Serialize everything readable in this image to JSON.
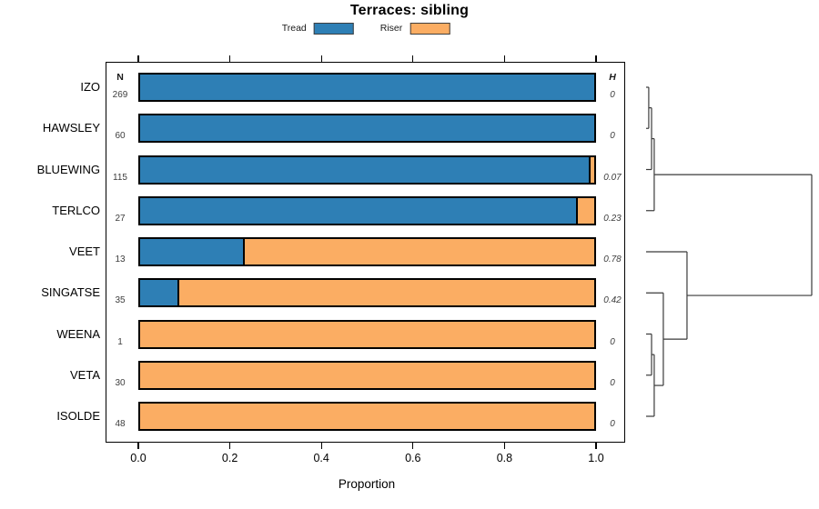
{
  "title": "Terraces: sibling",
  "legend": {
    "items": [
      {
        "label": "Tread",
        "color": "#2E7FB5"
      },
      {
        "label": "Riser",
        "color": "#FBAD63"
      }
    ]
  },
  "columns": {
    "n_header": "N",
    "h_header": "H"
  },
  "x_axis": {
    "label": "Proportion",
    "ticks": [
      "0.0",
      "0.2",
      "0.4",
      "0.6",
      "0.8",
      "1.0"
    ],
    "tick_values": [
      0,
      0.2,
      0.4,
      0.6,
      0.8,
      1.0
    ]
  },
  "chart_data": {
    "type": "bar",
    "orientation": "horizontal-stacked",
    "title": "Terraces: sibling",
    "xlabel": "Proportion",
    "xlim": [
      0,
      1
    ],
    "legend_position": "top",
    "grid": false,
    "series_names": [
      "Tread",
      "Riser"
    ],
    "colors": {
      "tread": "#2E7FB5",
      "riser": "#FBAD63"
    },
    "rows": [
      {
        "label": "IZO",
        "n": 269,
        "tread": 1.0,
        "riser": 0.0,
        "h": "0"
      },
      {
        "label": "HAWSLEY",
        "n": 60,
        "tread": 1.0,
        "riser": 0.0,
        "h": "0"
      },
      {
        "label": "BLUEWING",
        "n": 115,
        "tread": 0.9913,
        "riser": 0.0087,
        "h": "0.07"
      },
      {
        "label": "TERLCO",
        "n": 27,
        "tread": 0.963,
        "riser": 0.037,
        "h": "0.23"
      },
      {
        "label": "VEET",
        "n": 13,
        "tread": 0.2308,
        "riser": 0.7692,
        "h": "0.78"
      },
      {
        "label": "SINGATSE",
        "n": 35,
        "tread": 0.0857,
        "riser": 0.9143,
        "h": "0.42"
      },
      {
        "label": "WEENA",
        "n": 1,
        "tread": 0.0,
        "riser": 1.0,
        "h": "0"
      },
      {
        "label": "VETA",
        "n": 30,
        "tread": 0.0,
        "riser": 1.0,
        "h": "0"
      },
      {
        "label": "ISOLDE",
        "n": 48,
        "tread": 0.0,
        "riser": 1.0,
        "h": "0"
      }
    ],
    "dendrogram": {
      "heights_normalized": true,
      "tree": {
        "h": 1.0,
        "children": [
          {
            "h": 0.049,
            "children": [
              {
                "h": 0.033,
                "children": [
                  {
                    "h": 0.016,
                    "children": [
                      {
                        "leaf": "IZO"
                      },
                      {
                        "leaf": "HAWSLEY"
                      }
                    ]
                  },
                  {
                    "leaf": "BLUEWING"
                  }
                ]
              },
              {
                "leaf": "TERLCO"
              }
            ]
          },
          {
            "h": 0.247,
            "children": [
              {
                "leaf": "VEET"
              },
              {
                "h": 0.104,
                "children": [
                  {
                    "leaf": "SINGATSE"
                  },
                  {
                    "h": 0.049,
                    "children": [
                      {
                        "h": 0.033,
                        "children": [
                          {
                            "leaf": "WEENA"
                          },
                          {
                            "leaf": "VETA"
                          }
                        ]
                      },
                      {
                        "leaf": "ISOLDE"
                      }
                    ]
                  }
                ]
              }
            ]
          }
        ]
      }
    }
  }
}
